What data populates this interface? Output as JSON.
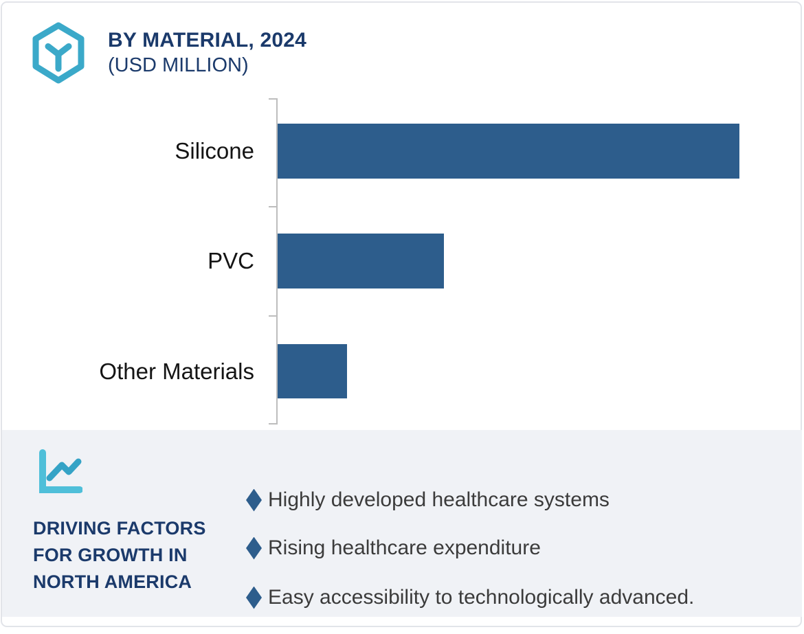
{
  "header": {
    "title": "BY MATERIAL, 2024",
    "subtitle": "(USD MILLION)",
    "logo_icon": "hexagon-y-logo-icon"
  },
  "chart_data": {
    "type": "bar",
    "orientation": "horizontal",
    "title": "BY MATERIAL, 2024",
    "subtitle": "(USD MILLION)",
    "unit": "USD Million",
    "categories": [
      "Silicone",
      "PVC",
      "Other Materials"
    ],
    "values_relative_pct": [
      100,
      36,
      15
    ],
    "value_axis_labels_visible": false,
    "grid": false,
    "legend": false,
    "bar_color": "#2d5d8c"
  },
  "driving_factors": {
    "icon": "line-chart-icon",
    "heading": "DRIVING FACTORS\nFOR GROWTH IN\nNORTH AMERICA",
    "items": [
      "Highly developed healthcare systems",
      "Rising healthcare expenditure",
      "Easy accessibility to technologically advanced."
    ]
  },
  "colors": {
    "bar": "#2d5d8c",
    "accent_teal": "#3BA9C9",
    "navy": "#1b3a6b",
    "panel_bg": "#f0f2f6",
    "axis": "#bdbdbd",
    "bullet_diamond": "#2d5d8c"
  }
}
